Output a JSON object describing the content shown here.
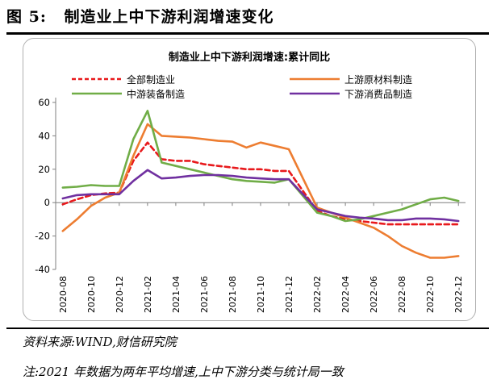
{
  "figure": {
    "label": "图 5:",
    "caption": "制造业上中下游利润增速变化"
  },
  "notes": {
    "source": "资料来源:WIND,财信研究院",
    "footnote": "注:2021 年数据为两年平均增速,上中下游分类与统计局一致"
  },
  "chart_data": {
    "type": "line",
    "title": "制造业上中下游利润增速:累计同比",
    "xlabel": "",
    "ylabel": "",
    "ylim": [
      -40,
      60
    ],
    "yticks": [
      -40,
      -20,
      0,
      20,
      40,
      60
    ],
    "x": [
      "2020-08",
      "2020-09",
      "2020-10",
      "2020-11",
      "2020-12",
      "2021-01",
      "2021-02",
      "2021-03",
      "2021-04",
      "2021-05",
      "2021-06",
      "2021-07",
      "2021-08",
      "2021-09",
      "2021-10",
      "2021-11",
      "2021-12",
      "2022-01",
      "2022-02",
      "2022-03",
      "2022-04",
      "2022-05",
      "2022-06",
      "2022-07",
      "2022-08",
      "2022-09",
      "2022-10",
      "2022-11",
      "2022-12"
    ],
    "xticks": [
      "2020-08",
      "2020-10",
      "2020-12",
      "2021-02",
      "2021-04",
      "2021-06",
      "2021-08",
      "2021-10",
      "2021-12",
      "2022-02",
      "2022-04",
      "2022-06",
      "2022-08",
      "2022-10",
      "2022-12"
    ],
    "legend_position": "top",
    "series": [
      {
        "name": "全部制造业",
        "color": "#e8191c",
        "dash": true,
        "values": [
          -1,
          2,
          4.5,
          5.5,
          6,
          25,
          36,
          26,
          25,
          25,
          23,
          22,
          21,
          20,
          20,
          19,
          19,
          null,
          -5,
          -8,
          -10,
          -11,
          -12,
          -13,
          -13,
          -13,
          -13,
          -13,
          -13
        ]
      },
      {
        "name": "上游原材料制造",
        "color": "#ed7d31",
        "dash": false,
        "values": [
          -17,
          -10,
          -2,
          3,
          6,
          28,
          47,
          40,
          39.5,
          39,
          38,
          37,
          36.5,
          33,
          36,
          34,
          32,
          null,
          -3,
          -6,
          -9,
          -12,
          -15,
          -20,
          -26,
          -30,
          -33,
          -33,
          -32
        ]
      },
      {
        "name": "中游装备制造",
        "color": "#70ad47",
        "dash": false,
        "values": [
          9,
          9.5,
          10.5,
          10,
          10,
          38,
          55,
          24,
          22,
          20,
          18,
          16,
          14,
          13,
          12.5,
          12,
          14,
          null,
          -6,
          -8,
          -11,
          -10,
          -8,
          -6,
          -4,
          -1,
          2,
          3,
          1
        ]
      },
      {
        "name": "下游消费品制造",
        "color": "#7030a0",
        "dash": false,
        "values": [
          2.5,
          4.5,
          5,
          5,
          5,
          13,
          19.5,
          14.5,
          15,
          16,
          16.5,
          16.5,
          16,
          15,
          14.5,
          14,
          14,
          null,
          -4,
          -6,
          -8,
          -9,
          -9.5,
          -10.5,
          -10.5,
          -9.5,
          -9.5,
          -10,
          -11
        ]
      }
    ]
  }
}
